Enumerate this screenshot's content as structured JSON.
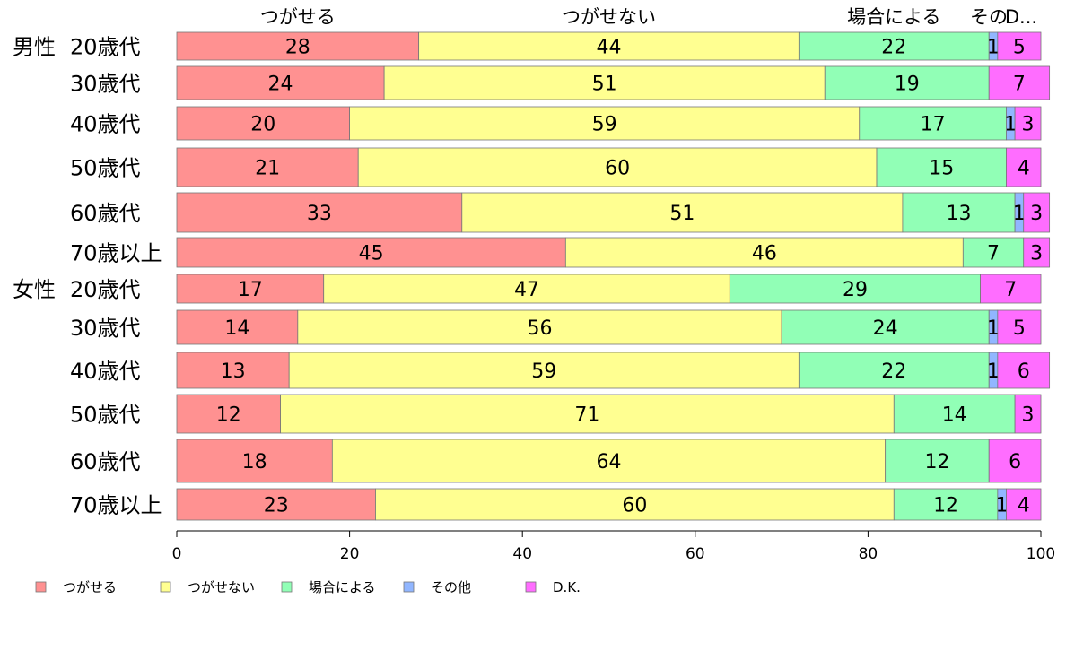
{
  "chart_data": {
    "type": "bar",
    "orientation": "horizontal",
    "stacked": true,
    "groups": [
      {
        "label": "男性",
        "categories": [
          "20歳代",
          "30歳代",
          "40歳代",
          "50歳代",
          "60歳代",
          "70歳以上"
        ]
      },
      {
        "label": "女性",
        "categories": [
          "20歳代",
          "30歳代",
          "40歳代",
          "50歳代",
          "60歳代",
          "70歳以上"
        ]
      }
    ],
    "series": [
      {
        "name": "つがせる",
        "top_label": "つがせる",
        "color": "#ff9191",
        "values": [
          28,
          24,
          20,
          21,
          33,
          45,
          17,
          14,
          13,
          12,
          18,
          23
        ]
      },
      {
        "name": "つがせない",
        "top_label": "つがせない",
        "color": "#ffff91",
        "values": [
          44,
          51,
          59,
          60,
          51,
          46,
          47,
          56,
          59,
          71,
          64,
          60
        ]
      },
      {
        "name": "場合による",
        "top_label": "場合による",
        "color": "#91ffb6",
        "values": [
          22,
          19,
          17,
          15,
          13,
          7,
          29,
          24,
          22,
          14,
          12,
          12
        ]
      },
      {
        "name": "その他",
        "top_label": "その",
        "color": "#91b6ff",
        "values": [
          1,
          0,
          1,
          0,
          1,
          0,
          0,
          1,
          1,
          0,
          0,
          1
        ]
      },
      {
        "name": "D.K.",
        "top_label": "D...",
        "color": "#ff6dff",
        "values": [
          5,
          7,
          3,
          4,
          3,
          3,
          7,
          5,
          6,
          3,
          6,
          4
        ]
      }
    ],
    "xlim": [
      0,
      100
    ],
    "xticks": [
      0,
      20,
      40,
      60,
      80,
      100
    ],
    "legend_position": "bottom-left",
    "grid": false
  }
}
